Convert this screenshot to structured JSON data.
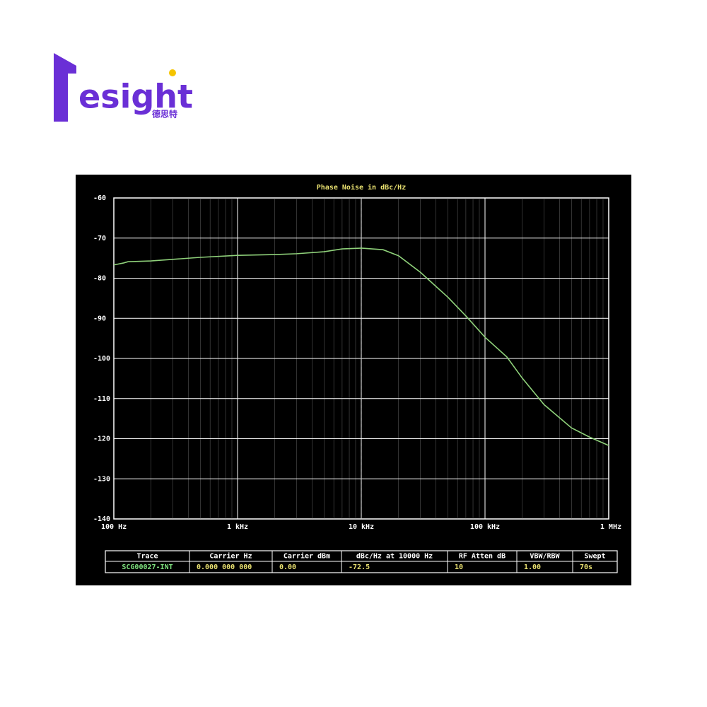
{
  "logo": {
    "text": "esight",
    "subtext": "德思特"
  },
  "chart_data": {
    "type": "line",
    "title": "Phase Noise in dBc/Hz",
    "x": [
      100,
      120,
      130,
      200,
      300,
      500,
      1000,
      2000,
      3000,
      5000,
      7000,
      10000,
      15000,
      20000,
      30000,
      40000,
      50000,
      70000,
      100000,
      150000,
      200000,
      300000,
      500000,
      700000,
      1000000
    ],
    "values": [
      -76.7,
      -76.2,
      -75.9,
      -75.7,
      -75.3,
      -74.8,
      -74.3,
      -74.1,
      -73.9,
      -73.4,
      -72.7,
      -72.5,
      -72.9,
      -74.4,
      -78.5,
      -82.0,
      -84.7,
      -89.4,
      -94.7,
      -99.6,
      -104.9,
      -111.5,
      -117.3,
      -119.6,
      -121.7
    ],
    "color": "#8fd17a",
    "xscale": "log",
    "xlim": [
      100,
      1000000
    ],
    "xticks": [
      {
        "value": 100,
        "label": "100 Hz"
      },
      {
        "value": 1000,
        "label": "1 kHz"
      },
      {
        "value": 10000,
        "label": "10 kHz"
      },
      {
        "value": 100000,
        "label": "100 kHz"
      },
      {
        "value": 1000000,
        "label": "1 MHz"
      }
    ],
    "ylim": [
      -140,
      -60
    ],
    "yticks": [
      -60,
      -70,
      -80,
      -90,
      -100,
      -110,
      -120,
      -130,
      -140
    ],
    "marker_x": 10000,
    "grid": true
  },
  "table": {
    "headers": [
      "Trace",
      "Carrier Hz",
      "Carrier dBm",
      "dBc/Hz at 10000 Hz",
      "RF Atten dB",
      "VBW/RBW",
      "Swept"
    ],
    "rows": [
      [
        "SCG00027-INT",
        "0.000 000 000",
        "0.00",
        "-72.5",
        "10",
        "1.00",
        "70s"
      ]
    ]
  }
}
